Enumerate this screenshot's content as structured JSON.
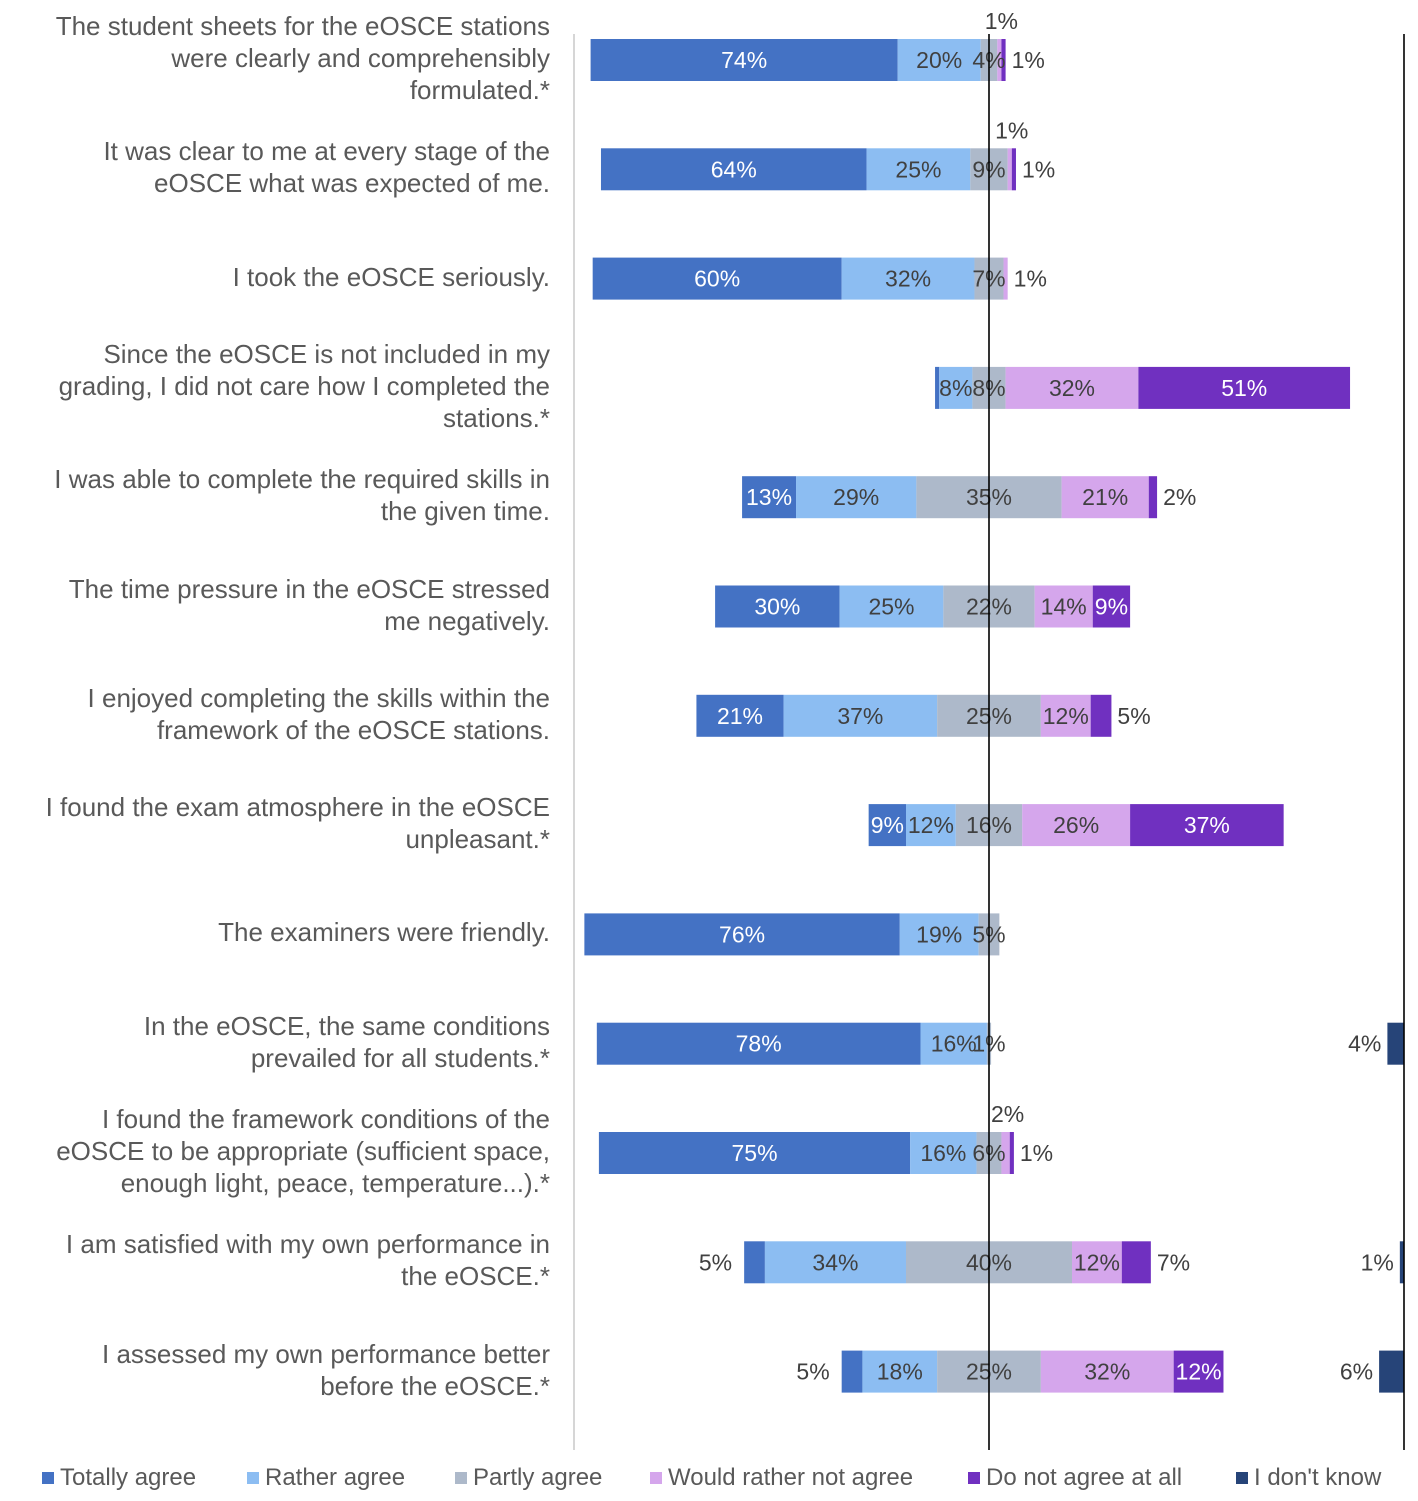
{
  "chart_data": {
    "type": "bar",
    "orientation": "horizontal",
    "stacked": "diverging",
    "grid": false,
    "legend_position": "bottom",
    "xlabel": "",
    "ylabel": "",
    "series": [
      {
        "name": "Totally agree",
        "color": "#4472C4",
        "label_color": "#FFFFFF"
      },
      {
        "name": "Rather agree",
        "color": "#8CBDF2",
        "label_color": "#404040"
      },
      {
        "name": "Partly agree",
        "color": "#ADB9CA",
        "label_color": "#404040"
      },
      {
        "name": "Would rather not agree",
        "color": "#D5A6EC",
        "label_color": "#404040"
      },
      {
        "name": "Do not agree at all",
        "color": "#7030C0",
        "label_color": "#FFFFFF"
      },
      {
        "name": "I don't know",
        "color": "#264478",
        "label_color": "#404040"
      }
    ],
    "categories": [
      "The student sheets for the eOSCE stations were clearly and comprehensibly formulated.*",
      "It was clear to me at every stage of the eOSCE what was expected of me.",
      "I took the eOSCE seriously.",
      "Since the eOSCE is not included in my grading, I did not care how I completed the stations.*",
      "I was able to complete the required skills in the given time.",
      "The time pressure in the eOSCE stressed me negatively.",
      "I enjoyed completing the skills within the framework of the eOSCE stations.",
      "I found the exam atmosphere in the eOSCE unpleasant.*",
      "The examiners were friendly.",
      "In the eOSCE, the same conditions prevailed for all students.*",
      "I found the framework conditions of the eOSCE to be appropriate (sufficient space, enough light, peace, temperature...).*",
      "I am satisfied with my own performance in the eOSCE.*",
      "I assessed my own performance better before the eOSCE.*"
    ],
    "category_lines": [
      [
        "The student sheets for the eOSCE stations",
        "were clearly and comprehensibly",
        "formulated.*"
      ],
      [
        "It was clear to me at every stage of the",
        "eOSCE what was expected of me."
      ],
      [
        "I took the eOSCE seriously."
      ],
      [
        "Since the eOSCE is not included in my",
        "grading, I did not care how I completed the",
        "stations.*"
      ],
      [
        "I was able to complete the required skills in",
        "the given time."
      ],
      [
        "The time pressure in the eOSCE stressed",
        "me negatively."
      ],
      [
        "I enjoyed completing the skills within the",
        "framework of the eOSCE stations."
      ],
      [
        "I found the exam atmosphere in the eOSCE",
        "unpleasant.*"
      ],
      [
        "The examiners were friendly."
      ],
      [
        "In the eOSCE, the same conditions",
        "prevailed for all students.*"
      ],
      [
        "I found the framework conditions of the",
        "eOSCE to be appropriate (sufficient space,",
        "enough light, peace, temperature...).*"
      ],
      [
        "I am satisfied with my own performance in",
        "the eOSCE.*"
      ],
      [
        "I assessed my own performance better",
        "before the eOSCE.*"
      ]
    ],
    "values": [
      [
        74,
        20,
        4,
        1,
        1,
        0
      ],
      [
        64,
        25,
        9,
        1,
        1,
        0
      ],
      [
        60,
        32,
        7,
        1,
        0,
        0
      ],
      [
        1,
        8,
        8,
        32,
        51,
        0
      ],
      [
        13,
        29,
        35,
        21,
        2,
        0
      ],
      [
        30,
        25,
        22,
        14,
        9,
        0
      ],
      [
        21,
        37,
        25,
        12,
        5,
        0
      ],
      [
        9,
        12,
        16,
        26,
        37,
        0
      ],
      [
        76,
        19,
        5,
        0,
        0,
        0
      ],
      [
        78,
        16,
        1,
        0,
        0,
        4
      ],
      [
        75,
        16,
        6,
        2,
        1,
        0
      ],
      [
        5,
        34,
        40,
        12,
        7,
        1
      ],
      [
        5,
        18,
        25,
        32,
        12,
        6
      ]
    ],
    "labels": [
      [
        "74%",
        "20%",
        "4%",
        "1%",
        "1%",
        ""
      ],
      [
        "64%",
        "25%",
        "9%",
        "1%",
        "1%",
        ""
      ],
      [
        "60%",
        "32%",
        "7%",
        "1%",
        "",
        ""
      ],
      [
        "",
        "8%",
        "8%",
        "32%",
        "51%",
        ""
      ],
      [
        "13%",
        "29%",
        "35%",
        "21%",
        "2%",
        ""
      ],
      [
        "30%",
        "25%",
        "22%",
        "14%",
        "9%",
        ""
      ],
      [
        "21%",
        "37%",
        "25%",
        "12%",
        "5%",
        ""
      ],
      [
        "9%",
        "12%",
        "16%",
        "26%",
        "37%",
        ""
      ],
      [
        "76%",
        "19%",
        "5%",
        "",
        "",
        ""
      ],
      [
        "78%",
        "16%",
        "1%",
        "",
        "",
        "4%"
      ],
      [
        "75%",
        "16%",
        "6%",
        "2%",
        "1%",
        ""
      ],
      [
        "5%",
        "34%",
        "40%",
        "12%",
        "7%",
        "1%"
      ],
      [
        "5%",
        "18%",
        "25%",
        "32%",
        "12%",
        "6%"
      ]
    ]
  }
}
